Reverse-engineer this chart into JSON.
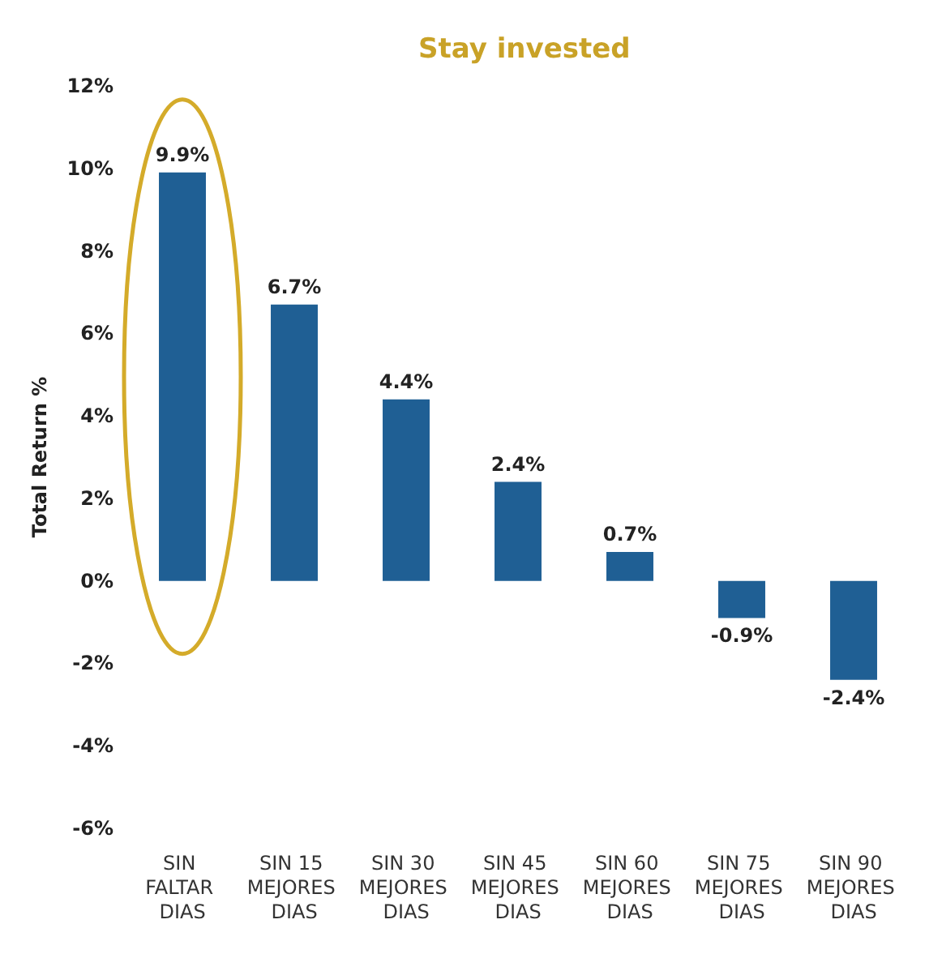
{
  "chart_data": {
    "type": "bar",
    "ylabel": "Total Return %",
    "annotations": [
      "Stay invested"
    ],
    "categories": [
      "SIN FALTAR DIAS",
      "SIN 15 MEJORES DIAS",
      "SIN 30 MEJORES DIAS",
      "SIN 45 MEJORES DIAS",
      "SIN 60 MEJORES DIAS",
      "SIN 75 MEJORES DIAS",
      "SIN 90 MEJORES DIAS"
    ],
    "values": [
      9.9,
      6.7,
      4.4,
      2.4,
      0.7,
      -0.9,
      -2.4
    ],
    "value_labels": [
      "9.9%",
      "6.7%",
      "4.4%",
      "2.4%",
      "0.7%",
      "-0.9%",
      "-2.4%"
    ],
    "color": "#1f5f94",
    "ylim": [
      -6,
      12
    ],
    "yticks": [
      {
        "value": -6,
        "label": "-6%"
      },
      {
        "value": -4,
        "label": "-4%"
      },
      {
        "value": -2,
        "label": "-2%"
      },
      {
        "value": 0,
        "label": "0%"
      },
      {
        "value": 2,
        "label": "2%"
      },
      {
        "value": 4,
        "label": "4%"
      },
      {
        "value": 6,
        "label": "6%"
      },
      {
        "value": 8,
        "label": "8%"
      },
      {
        "value": 10,
        "label": "10%"
      },
      {
        "value": 12,
        "label": "12%"
      }
    ],
    "grid": false
  }
}
